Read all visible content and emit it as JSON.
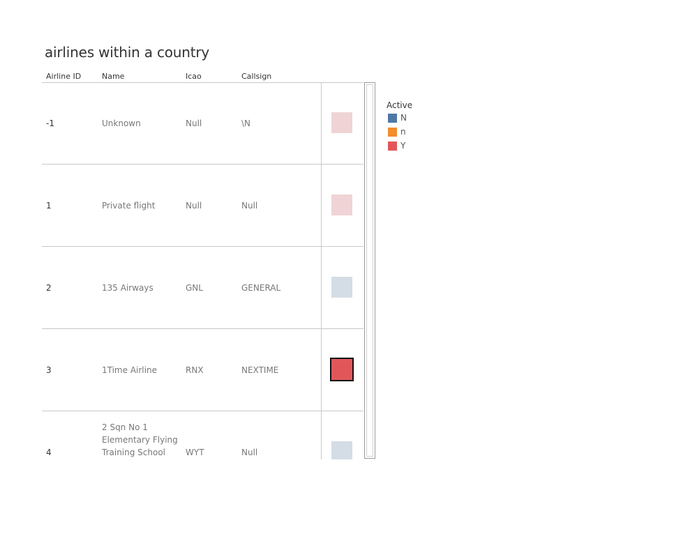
{
  "title": "airlines within a country",
  "headers": {
    "airline_id": "Airline ID",
    "name": "Name",
    "icao": "Icao",
    "callsign": "Callsign"
  },
  "legend": {
    "title": "Active",
    "items": [
      {
        "label": "N",
        "color": "#4e79a7"
      },
      {
        "label": "n",
        "color": "#f28e2b"
      },
      {
        "label": "Y",
        "color": "#e15759"
      }
    ]
  },
  "chart_data": {
    "type": "table",
    "columns": [
      "Airline ID",
      "Name",
      "Icao",
      "Callsign",
      "Active"
    ],
    "rows": [
      {
        "airline_id": "-1",
        "name": "Unknown",
        "icao": "Null",
        "callsign": "\\N",
        "active": "Y",
        "color": "#f0d4d5",
        "selected": false
      },
      {
        "airline_id": "1",
        "name": "Private flight",
        "icao": "Null",
        "callsign": "Null",
        "active": "Y",
        "color": "#f0d4d5",
        "selected": false
      },
      {
        "airline_id": "2",
        "name": "135 Airways",
        "icao": "GNL",
        "callsign": "GENERAL",
        "active": "N",
        "color": "#d4dde5",
        "selected": false
      },
      {
        "airline_id": "3",
        "name": "1Time Airline",
        "icao": "RNX",
        "callsign": "NEXTIME",
        "active": "Y",
        "color": "#e15759",
        "selected": true
      },
      {
        "airline_id": "4",
        "name": "2 Sqn No 1 Elementary Flying Training School",
        "icao": "WYT",
        "callsign": "Null",
        "active": "N",
        "color": "#d4dde5",
        "selected": false
      }
    ]
  }
}
